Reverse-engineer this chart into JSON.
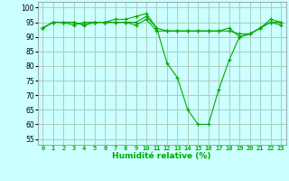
{
  "xlabel": "Humidité relative (%)",
  "background_color": "#ccffff",
  "grid_color": "#aaccbb",
  "line_color": "#00aa00",
  "xlim": [
    -0.5,
    23.5
  ],
  "ylim": [
    53,
    102
  ],
  "yticks": [
    55,
    60,
    65,
    70,
    75,
    80,
    85,
    90,
    95,
    100
  ],
  "xticks": [
    0,
    1,
    2,
    3,
    4,
    5,
    6,
    7,
    8,
    9,
    10,
    11,
    12,
    13,
    14,
    15,
    16,
    17,
    18,
    19,
    20,
    21,
    22,
    23
  ],
  "series": [
    [
      93,
      95,
      95,
      95,
      94,
      95,
      95,
      96,
      96,
      97,
      98,
      93,
      81,
      76,
      65,
      60,
      60,
      72,
      82,
      90,
      91,
      93,
      96,
      95
    ],
    [
      93,
      95,
      95,
      95,
      94,
      95,
      95,
      95,
      95,
      95,
      97,
      93,
      92,
      92,
      92,
      92,
      92,
      92,
      92,
      91,
      91,
      93,
      95,
      94
    ],
    [
      93,
      95,
      95,
      94,
      95,
      95,
      95,
      95,
      95,
      94,
      96,
      92,
      92,
      92,
      92,
      92,
      92,
      92,
      93,
      90,
      91,
      93,
      95,
      95
    ]
  ]
}
